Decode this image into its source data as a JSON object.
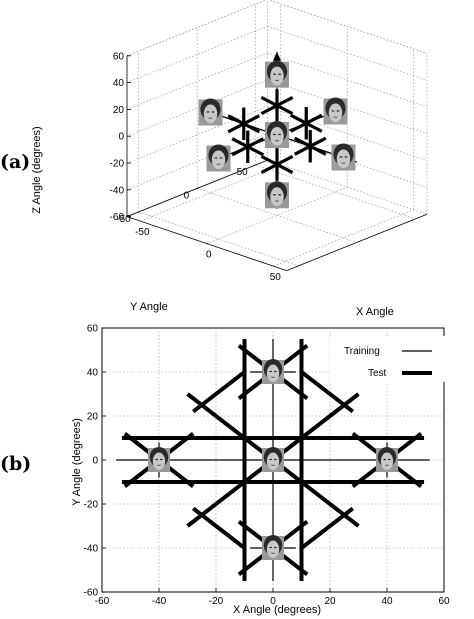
{
  "panel_a": {
    "label": "(a)",
    "chart_data": {
      "type": "scatter3d",
      "title": "",
      "xlabel": "X Angle",
      "ylabel": "Y Angle",
      "zlabel": "Z Angle (degrees)",
      "xlim": [
        -60,
        60
      ],
      "ylim": [
        -60,
        60
      ],
      "zlim": [
        -60,
        60
      ],
      "x_ticks": [
        -50,
        0,
        50
      ],
      "y_ticks": [
        -50,
        0,
        50
      ],
      "z_ticks": [
        -60,
        -40,
        -20,
        0,
        20,
        40,
        60
      ],
      "grid": true,
      "axis_arrows": [
        {
          "from": [
            0,
            -55,
            0
          ],
          "to": [
            0,
            60,
            0
          ]
        },
        {
          "from": [
            -55,
            0,
            0
          ],
          "to": [
            60,
            0,
            0
          ]
        },
        {
          "from": [
            0,
            0,
            -55
          ],
          "to": [
            0,
            0,
            62
          ]
        }
      ],
      "face_images": [
        {
          "x": 0,
          "y": 0,
          "z": 0
        },
        {
          "x": 0,
          "y": 0,
          "z": 45
        },
        {
          "x": 0,
          "y": 0,
          "z": -45
        },
        {
          "x": -50,
          "y": 0,
          "z": 0
        },
        {
          "x": 50,
          "y": 0,
          "z": 0
        },
        {
          "x": 0,
          "y": 50,
          "z": 0
        },
        {
          "x": 0,
          "y": -50,
          "z": 0
        }
      ],
      "test_stars": [
        {
          "x": 0,
          "y": 0,
          "z": 22
        },
        {
          "x": 0,
          "y": 0,
          "z": -22
        },
        {
          "x": -25,
          "y": 0,
          "z": 0
        },
        {
          "x": 25,
          "y": 0,
          "z": 0
        },
        {
          "x": 0,
          "y": 25,
          "z": 0
        },
        {
          "x": 0,
          "y": -25,
          "z": 0
        }
      ]
    }
  },
  "panel_b": {
    "label": "(b)",
    "chart_data": {
      "type": "line",
      "title": "",
      "xlabel": "X Angle (degrees)",
      "ylabel": "Y Angle (degrees)",
      "xlim": [
        -60,
        60
      ],
      "ylim": [
        -60,
        60
      ],
      "x_ticks": [
        -60,
        -40,
        -20,
        0,
        20,
        40,
        60
      ],
      "y_ticks": [
        -60,
        -40,
        -20,
        0,
        20,
        40,
        60
      ],
      "grid": true,
      "legend": {
        "position": "top-right",
        "entries": [
          "Training",
          "Test"
        ]
      },
      "series": [
        {
          "name": "Training",
          "style": "thin",
          "segments": [
            [
              [
                -55,
                0
              ],
              [
                55,
                0
              ]
            ],
            [
              [
                0,
                -55
              ],
              [
                0,
                55
              ]
            ],
            [
              [
                -40,
                -8
              ],
              [
                -40,
                8
              ]
            ],
            [
              [
                40,
                -8
              ],
              [
                40,
                8
              ]
            ],
            [
              [
                -8,
                40
              ],
              [
                8,
                40
              ]
            ],
            [
              [
                -8,
                -40
              ],
              [
                8,
                -40
              ]
            ],
            [
              [
                -8,
                -8
              ],
              [
                8,
                8
              ]
            ],
            [
              [
                -8,
                8
              ],
              [
                8,
                -8
              ]
            ],
            [
              [
                -50,
                -10
              ],
              [
                -30,
                10
              ]
            ],
            [
              [
                -50,
                10
              ],
              [
                -30,
                -10
              ]
            ],
            [
              [
                30,
                -10
              ],
              [
                50,
                10
              ]
            ],
            [
              [
                30,
                10
              ],
              [
                50,
                -10
              ]
            ],
            [
              [
                -10,
                30
              ],
              [
                10,
                50
              ]
            ],
            [
              [
                -10,
                50
              ],
              [
                10,
                30
              ]
            ],
            [
              [
                -10,
                -50
              ],
              [
                10,
                -30
              ]
            ],
            [
              [
                -10,
                -30
              ],
              [
                10,
                -50
              ]
            ]
          ]
        },
        {
          "name": "Test",
          "style": "thick",
          "segments": [
            [
              [
                -53,
                10
              ],
              [
                53,
                10
              ]
            ],
            [
              [
                -53,
                -10
              ],
              [
                53,
                -10
              ]
            ],
            [
              [
                -10,
                -55
              ],
              [
                -10,
                55
              ]
            ],
            [
              [
                10,
                -55
              ],
              [
                10,
                55
              ]
            ],
            [
              [
                -30,
                -30
              ],
              [
                30,
                30
              ]
            ],
            [
              [
                -30,
                30
              ],
              [
                30,
                -30
              ]
            ],
            [
              [
                -28,
                22
              ],
              [
                -10,
                40
              ]
            ],
            [
              [
                10,
                40
              ],
              [
                28,
                22
              ]
            ],
            [
              [
                -28,
                -22
              ],
              [
                -10,
                -40
              ]
            ],
            [
              [
                10,
                -40
              ],
              [
                28,
                -22
              ]
            ],
            [
              [
                -12,
                52
              ],
              [
                12,
                28
              ]
            ],
            [
              [
                -12,
                28
              ],
              [
                12,
                52
              ]
            ],
            [
              [
                -12,
                -52
              ],
              [
                12,
                -28
              ]
            ],
            [
              [
                -12,
                -28
              ],
              [
                12,
                -52
              ]
            ],
            [
              [
                -52,
                12
              ],
              [
                -28,
                -12
              ]
            ],
            [
              [
                28,
                12
              ],
              [
                52,
                -12
              ]
            ],
            [
              [
                -52,
                -12
              ],
              [
                -28,
                12
              ]
            ],
            [
              [
                28,
                -12
              ],
              [
                52,
                12
              ]
            ]
          ]
        }
      ],
      "face_images": [
        {
          "x": 0,
          "y": 0
        },
        {
          "x": 0,
          "y": 40
        },
        {
          "x": 0,
          "y": -40
        },
        {
          "x": -40,
          "y": 0
        },
        {
          "x": 40,
          "y": 0
        }
      ]
    }
  }
}
